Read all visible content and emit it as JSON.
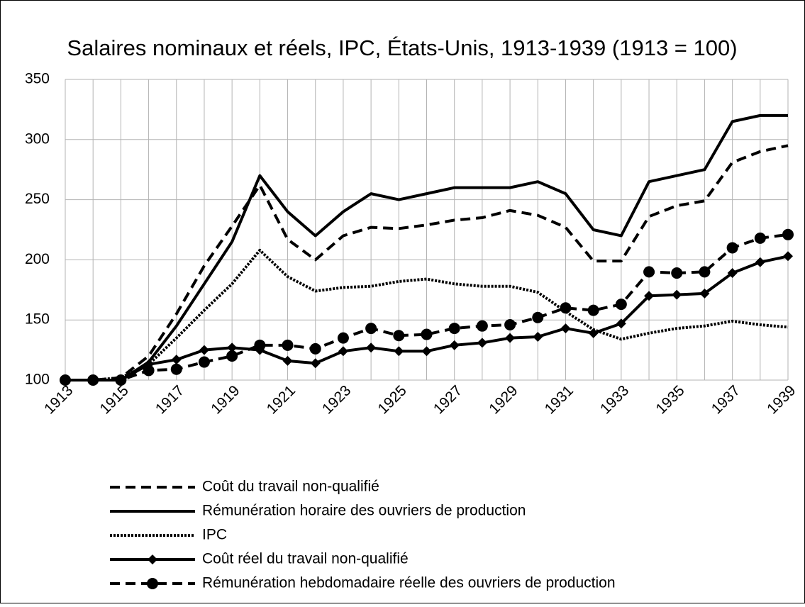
{
  "chart_data": {
    "type": "line",
    "title": "Salaires nominaux et réels, IPC, États-Unis, 1913-1939 (1913 = 100)",
    "categories": [
      "1913",
      null,
      "1915",
      null,
      "1917",
      null,
      "1919",
      null,
      "1921",
      null,
      "1923",
      null,
      "1925",
      null,
      "1927",
      null,
      "1929",
      null,
      "1931",
      null,
      "1933",
      null,
      "1935",
      null,
      "1937",
      null,
      "1939"
    ],
    "ylim": [
      100,
      350
    ],
    "yticks": [
      100,
      150,
      200,
      250,
      300,
      350
    ],
    "grid": true,
    "legend": "bottom",
    "series": [
      {
        "name": "Coût du travail non-qualifié",
        "color": "#000000",
        "dash": "dashed",
        "marker": "none",
        "values": [
          100,
          100,
          102,
          120,
          155,
          195,
          228,
          262,
          217,
          200,
          220,
          227,
          226,
          229,
          233,
          235,
          241,
          237,
          227,
          199,
          199,
          236,
          245,
          249,
          281,
          290,
          295
        ]
      },
      {
        "name": "Rémunération horaire des ouvriers de production",
        "color": "#000000",
        "dash": "solid",
        "marker": "none",
        "values": [
          100,
          100,
          100,
          115,
          145,
          180,
          215,
          270,
          240,
          220,
          240,
          255,
          250,
          255,
          260,
          260,
          260,
          265,
          255,
          225,
          220,
          265,
          270,
          275,
          315,
          320,
          320
        ]
      },
      {
        "name": "IPC",
        "color": "#000000",
        "dash": "dotted",
        "marker": "none",
        "values": [
          100,
          100,
          102,
          113,
          135,
          158,
          180,
          208,
          186,
          174,
          177,
          178,
          182,
          184,
          180,
          178,
          178,
          173,
          157,
          142,
          134,
          139,
          143,
          145,
          149,
          146,
          144
        ]
      },
      {
        "name": "Coût réel du travail non-qualifié",
        "color": "#000000",
        "dash": "solid",
        "marker": "diamond",
        "values": [
          100,
          100,
          100,
          113,
          117,
          125,
          127,
          125,
          116,
          114,
          124,
          127,
          124,
          124,
          129,
          131,
          135,
          136,
          143,
          139,
          147,
          170,
          171,
          172,
          189,
          198,
          203
        ]
      },
      {
        "name": "Rémunération hebdomadaire réelle des ouvriers de production",
        "color": "#000000",
        "dash": "dashed",
        "marker": "circle",
        "values": [
          100,
          100,
          100,
          108,
          109,
          115,
          120,
          129,
          129,
          126,
          135,
          143,
          137,
          138,
          143,
          145,
          146,
          152,
          160,
          158,
          163,
          190,
          189,
          190,
          210,
          218,
          221
        ]
      }
    ]
  }
}
